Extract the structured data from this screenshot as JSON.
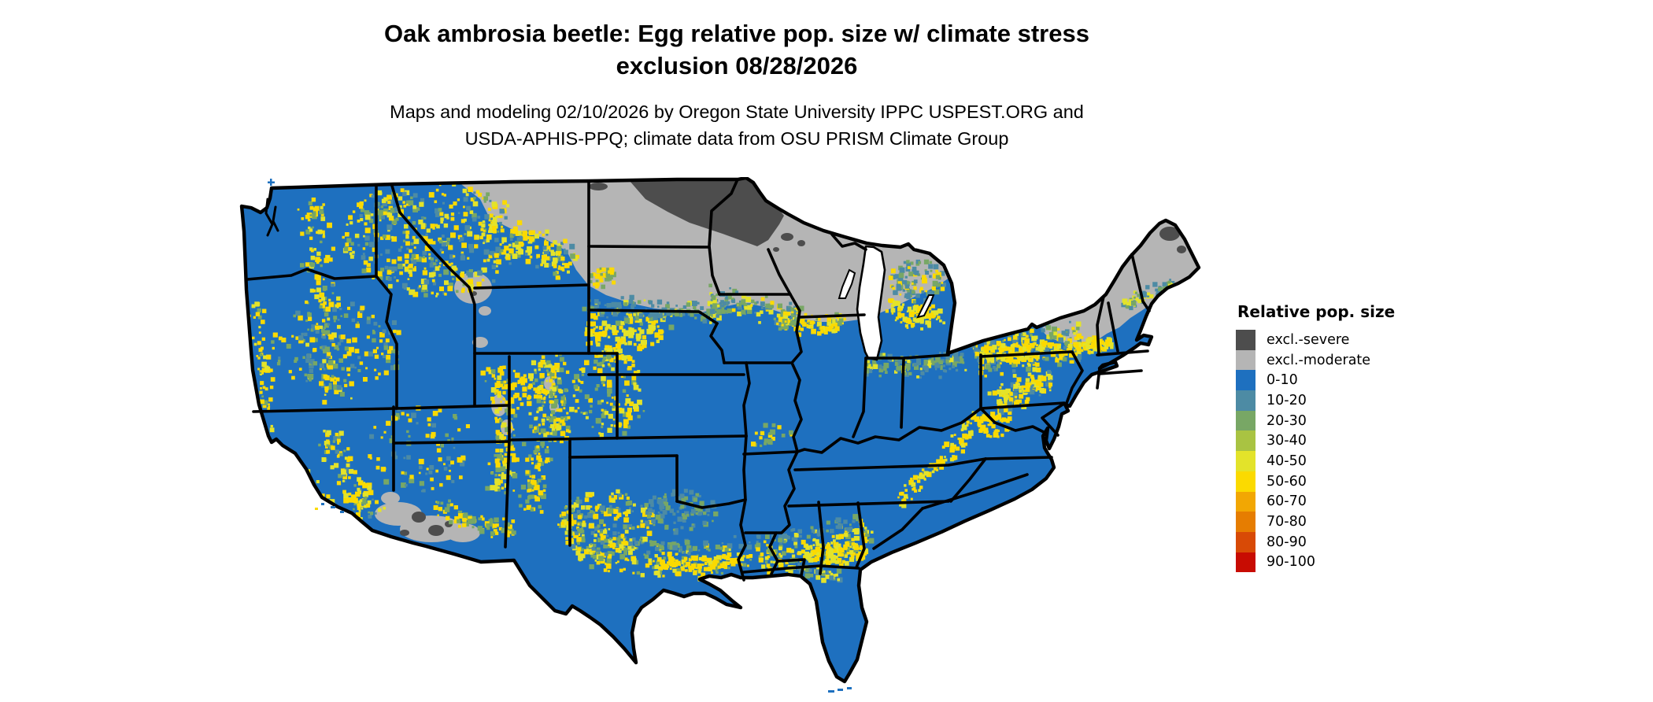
{
  "header": {
    "title_line1": "Oak ambrosia beetle: Egg relative pop. size w/ climate stress",
    "title_line2": "exclusion 08/28/2026",
    "subtitle_line1": "Maps and modeling 02/10/2026 by Oregon State University IPPC USPEST.ORG and",
    "subtitle_line2": "USDA-APHIS-PPQ; climate data from OSU PRISM Climate Group"
  },
  "legend": {
    "title": "Relative pop. size",
    "entries": [
      {
        "key": "excl-severe",
        "label": "excl.-severe",
        "color": "#4d4d4d"
      },
      {
        "key": "excl-moderate",
        "label": "excl.-moderate",
        "color": "#b5b5b5"
      },
      {
        "key": "0-10",
        "label": "0-10",
        "color": "#1e70bf"
      },
      {
        "key": "10-20",
        "label": "10-20",
        "color": "#4d8ba4"
      },
      {
        "key": "20-30",
        "label": "20-30",
        "color": "#78a765"
      },
      {
        "key": "30-40",
        "label": "30-40",
        "color": "#a9c342"
      },
      {
        "key": "40-50",
        "label": "40-50",
        "color": "#e3e32a"
      },
      {
        "key": "50-60",
        "label": "50-60",
        "color": "#fbda00"
      },
      {
        "key": "60-70",
        "label": "60-70",
        "color": "#f2a703"
      },
      {
        "key": "70-80",
        "label": "70-80",
        "color": "#e67d01"
      },
      {
        "key": "80-90",
        "label": "80-90",
        "color": "#d84a06"
      },
      {
        "key": "90-100",
        "label": "90-100",
        "color": "#c80c02"
      }
    ]
  },
  "map": {
    "description": "Continental United States raster map of modeled relative population size with climate stress exclusion zones; black state borders on white background",
    "base_class": "0-10",
    "regions": [
      {
        "name": "base-conus",
        "classes": [
          "0-10"
        ]
      },
      {
        "name": "north-central-exclusion",
        "classes": [
          "excl.-moderate"
        ]
      },
      {
        "name": "northeast-exclusion",
        "classes": [
          "excl.-moderate"
        ]
      },
      {
        "name": "northern-minnesota-severe",
        "classes": [
          "excl.-severe"
        ]
      },
      {
        "name": "maine-severe-patches",
        "classes": [
          "excl.-severe"
        ]
      },
      {
        "name": "southwest-desert-exclusion",
        "classes": [
          "excl.-moderate",
          "excl.-severe"
        ]
      },
      {
        "name": "rocky-mountain-exclusion-patches",
        "classes": [
          "excl.-moderate"
        ]
      },
      {
        "name": "western-mountain-mottle",
        "classes": [
          "10-20",
          "20-30",
          "30-40",
          "40-50",
          "50-60"
        ]
      },
      {
        "name": "northern-plains-transition",
        "classes": [
          "10-20",
          "20-30",
          "30-40",
          "40-50",
          "50-60"
        ]
      },
      {
        "name": "midwest-great-lakes-band",
        "classes": [
          "10-20",
          "20-30",
          "30-40",
          "40-50",
          "50-60"
        ]
      },
      {
        "name": "appalachian-northeast-mottle",
        "classes": [
          "10-20",
          "20-30",
          "30-40",
          "40-50",
          "50-60"
        ]
      },
      {
        "name": "gulf-coast-band",
        "classes": [
          "10-20",
          "20-30",
          "30-40",
          "40-50",
          "50-60"
        ]
      }
    ]
  }
}
